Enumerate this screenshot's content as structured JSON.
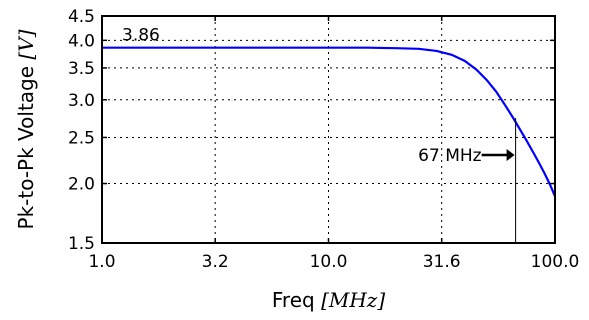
{
  "chart_data": {
    "type": "line",
    "xscale": "log",
    "yscale": "log",
    "xlabel_text": "Freq ",
    "xlabel_unit": "[MHz]",
    "ylabel_text": "Pk-to-Pk Voltage ",
    "ylabel_unit": "[V]",
    "xlim": [
      1.0,
      100.0
    ],
    "ylim": [
      1.5,
      4.5
    ],
    "x_ticks": [
      1.0,
      3.16,
      10.0,
      31.6,
      100.0
    ],
    "x_tick_labels": [
      "1.0",
      "3.2",
      "10.0",
      "31.6",
      "100.0"
    ],
    "y_ticks": [
      1.5,
      2.0,
      2.5,
      3.0,
      3.5,
      4.0,
      4.5
    ],
    "y_tick_labels": [
      "1.5",
      "2.0",
      "2.5",
      "3.0",
      "3.5",
      "4.0",
      "4.5"
    ],
    "grid": true,
    "line_color": "#0000ff",
    "series": [
      {
        "x": [
          1.0,
          2.0,
          5.0,
          10.0,
          15.0,
          20.0,
          25.0,
          30.0,
          35.0,
          40.0,
          45.0,
          50.0,
          55.0,
          60.0,
          65.0,
          70.0,
          75.0,
          80.0,
          85.0,
          90.0,
          95.0,
          100.0
        ],
        "y": [
          3.86,
          3.86,
          3.86,
          3.86,
          3.86,
          3.85,
          3.84,
          3.8,
          3.73,
          3.62,
          3.47,
          3.3,
          3.12,
          2.93,
          2.76,
          2.6,
          2.46,
          2.33,
          2.21,
          2.1,
          1.99,
          1.88
        ]
      }
    ],
    "annotations": {
      "max_label": "3.86",
      "cutoff_label": "67 MHz",
      "cutoff_x": 67.0
    }
  }
}
